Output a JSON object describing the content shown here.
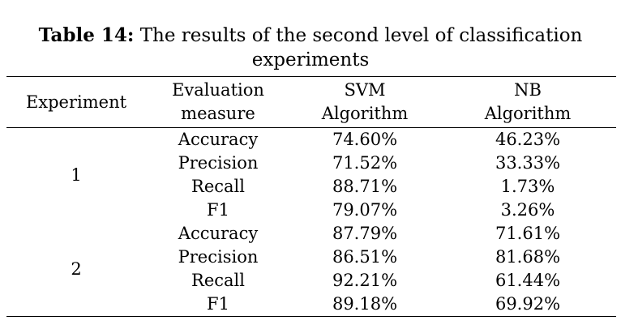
{
  "caption": {
    "label": "Table 14:",
    "text_line1": " The results of the second level of classification",
    "text_line2": "experiments"
  },
  "table": {
    "headers": {
      "experiment": "Experiment",
      "measure_line1": "Evaluation",
      "measure_line2": "measure",
      "svm_line1": "SVM",
      "svm_line2": "Algorithm",
      "nb_line1": "NB",
      "nb_line2": "Algorithm"
    },
    "groups": [
      {
        "experiment": "1",
        "rows": [
          {
            "measure": "Accuracy",
            "svm": "74.60%",
            "nb": "46.23%"
          },
          {
            "measure": "Precision",
            "svm": "71.52%",
            "nb": "33.33%"
          },
          {
            "measure": "Recall",
            "svm": "88.71%",
            "nb": "1.73%"
          },
          {
            "measure": "F1",
            "svm": "79.07%",
            "nb": "3.26%"
          }
        ]
      },
      {
        "experiment": "2",
        "rows": [
          {
            "measure": "Accuracy",
            "svm": "87.79%",
            "nb": "71.61%"
          },
          {
            "measure": "Precision",
            "svm": "86.51%",
            "nb": "81.68%"
          },
          {
            "measure": "Recall",
            "svm": "92.21%",
            "nb": "61.44%"
          },
          {
            "measure": "F1",
            "svm": "89.18%",
            "nb": "69.92%"
          }
        ]
      }
    ]
  }
}
